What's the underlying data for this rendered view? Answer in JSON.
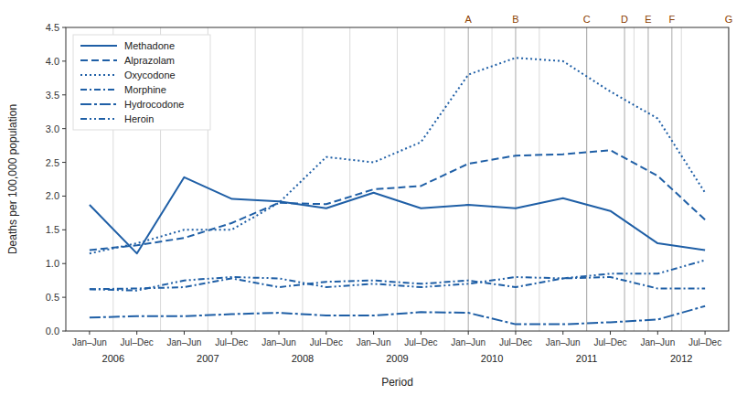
{
  "chart_data": {
    "type": "line",
    "categories": [
      "Jan–Jun",
      "Jul–Dec",
      "Jan–Jun",
      "Jul–Dec",
      "Jan–Jun",
      "Jul–Dec",
      "Jan–Jun",
      "Jul–Dec",
      "Jan–Jun",
      "Jul–Dec",
      "Jan–Jun",
      "Jul–Dec",
      "Jan–Jun",
      "Jul–Dec"
    ],
    "series": [
      {
        "name": "Methadone",
        "color": "#1F5FA6",
        "line_style": "solid",
        "values": [
          1.87,
          1.15,
          2.28,
          1.96,
          1.92,
          1.82,
          2.05,
          1.82,
          1.87,
          1.82,
          1.97,
          1.78,
          1.3,
          1.2
        ]
      },
      {
        "name": "Alprazolam",
        "color": "#1F5FA6",
        "line_style": "dashed",
        "values": [
          1.2,
          1.27,
          1.38,
          1.6,
          1.9,
          1.88,
          2.1,
          2.15,
          2.48,
          2.6,
          2.62,
          2.68,
          2.3,
          1.65
        ]
      },
      {
        "name": "Oxycodone",
        "color": "#1F5FA6",
        "line_style": "dotted",
        "values": [
          1.15,
          1.3,
          1.5,
          1.5,
          1.9,
          2.58,
          2.5,
          2.8,
          3.8,
          4.05,
          4.0,
          3.55,
          3.15,
          2.05
        ]
      },
      {
        "name": "Morphine",
        "color": "#1F5FA6",
        "line_style": "dashdot",
        "values": [
          0.62,
          0.63,
          0.65,
          0.78,
          0.65,
          0.73,
          0.75,
          0.7,
          0.75,
          0.65,
          0.78,
          0.8,
          0.63,
          0.63
        ]
      },
      {
        "name": "Hydrocodone",
        "color": "#1F5FA6",
        "line_style": "longdashdot",
        "values": [
          0.2,
          0.22,
          0.22,
          0.25,
          0.27,
          0.23,
          0.23,
          0.28,
          0.27,
          0.1,
          0.1,
          0.13,
          0.17,
          0.37
        ]
      },
      {
        "name": "Heroin",
        "color": "#1F5FA6",
        "line_style": "dashdotdot",
        "values": [
          0.62,
          0.6,
          0.75,
          0.8,
          0.78,
          0.65,
          0.7,
          0.65,
          0.7,
          0.8,
          0.78,
          0.85,
          0.85,
          1.05
        ]
      }
    ],
    "x_label": "Period",
    "y_label": "Deaths per 100,000 population",
    "xlim": [
      -0.5,
      13.5
    ],
    "ylim": [
      0.0,
      4.5
    ],
    "yticks": [
      {
        "value": 0.0,
        "label": "0.0"
      },
      0.5,
      {
        "value": 1.0,
        "label": "1.0"
      },
      1.5,
      {
        "value": 2.0,
        "label": "2.0"
      },
      2.5,
      {
        "value": 3.0,
        "label": "3.0"
      },
      3.5,
      {
        "value": 4.0,
        "label": "4.0"
      },
      4.5
    ],
    "x_groups": [
      {
        "label": "2006",
        "x": 0.5
      },
      {
        "label": "2007",
        "x": 2.5
      },
      {
        "label": "2008",
        "x": 4.5
      },
      {
        "label": "2009",
        "x": 6.5
      },
      {
        "label": "2010",
        "x": 8.5
      },
      {
        "label": "2011",
        "x": 10.5
      },
      {
        "label": "2012",
        "x": 12.5
      }
    ],
    "annotations": [
      {
        "text": "A",
        "x": 8.0,
        "color": "#8B4000",
        "line_color": "#aaaaaa"
      },
      {
        "text": "B",
        "x": 9.0,
        "color": "#8B4000",
        "line_color": "#aaaaaa"
      },
      {
        "text": "C",
        "x": 10.5,
        "color": "#8B4000",
        "line_color": "#aaaaaa"
      },
      {
        "text": "D",
        "x": 11.3,
        "color": "#8B4000",
        "line_color": "#aaaaaa"
      },
      {
        "text": "E",
        "x": 11.8,
        "color": "#8B4000",
        "line_color": "#aaaaaa"
      },
      {
        "text": "F",
        "x": 12.3,
        "color": "#8B4000",
        "line_color": "#aaaaaa"
      },
      {
        "text": "G",
        "x": 13.5,
        "color": "#8B4000",
        "line_color": "#aaaaaa"
      }
    ],
    "legend": "upper left",
    "grid": false
  }
}
